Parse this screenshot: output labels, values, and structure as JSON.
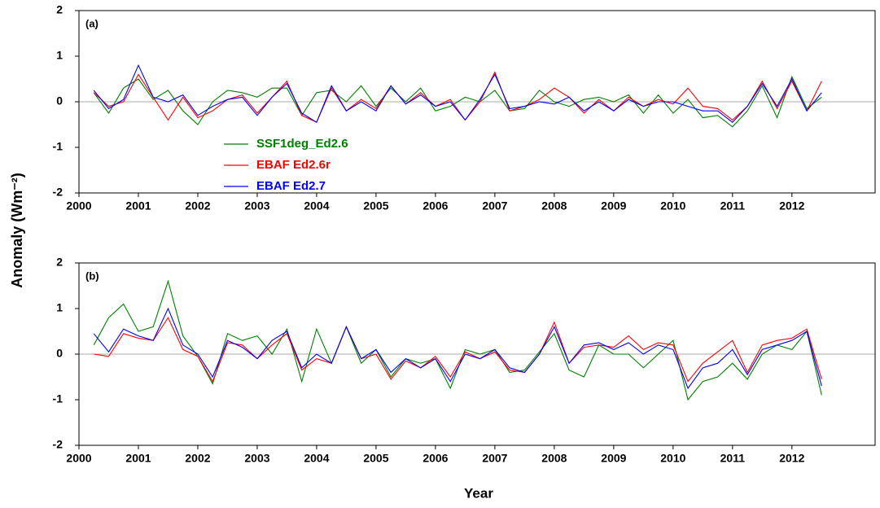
{
  "labels": {
    "y": "Anomaly (Wm⁻²)",
    "x": "Year"
  },
  "chart_data": [
    {
      "type": "line",
      "annotation": "(a)",
      "legend": "lower left",
      "zero_line": true,
      "xlim": [
        2000,
        2013.4
      ],
      "xticks": [
        2000,
        2001,
        2002,
        2003,
        2004,
        2005,
        2006,
        2007,
        2008,
        2009,
        2010,
        2011,
        2012
      ],
      "ylim": [
        -2,
        2
      ],
      "yticks": [
        -2,
        -1,
        0,
        1,
        2
      ],
      "x": [
        2000.25,
        2000.5,
        2000.75,
        2001.0,
        2001.25,
        2001.5,
        2001.75,
        2002.0,
        2002.25,
        2002.5,
        2002.75,
        2003.0,
        2003.25,
        2003.5,
        2003.75,
        2004.0,
        2004.25,
        2004.5,
        2004.75,
        2005.0,
        2005.25,
        2005.5,
        2005.75,
        2006.0,
        2006.25,
        2006.5,
        2006.75,
        2007.0,
        2007.25,
        2007.5,
        2007.75,
        2008.0,
        2008.25,
        2008.5,
        2008.75,
        2009.0,
        2009.25,
        2009.5,
        2009.75,
        2010.0,
        2010.25,
        2010.5,
        2010.75,
        2011.0,
        2011.25,
        2011.5,
        2011.75,
        2012.0,
        2012.25,
        2012.5
      ],
      "series": [
        {
          "name": "SSF1deg_Ed2.6",
          "color": "#008000",
          "values": [
            0.2,
            -0.25,
            0.3,
            0.5,
            0.05,
            0.25,
            -0.2,
            -0.5,
            0.0,
            0.25,
            0.2,
            0.1,
            0.3,
            0.3,
            -0.3,
            0.2,
            0.25,
            0.0,
            0.35,
            -0.1,
            0.3,
            0.0,
            0.3,
            -0.2,
            -0.1,
            0.1,
            0.0,
            0.25,
            -0.2,
            -0.15,
            0.25,
            0.0,
            -0.1,
            0.05,
            0.1,
            0.0,
            0.15,
            -0.25,
            0.15,
            -0.25,
            0.05,
            -0.35,
            -0.3,
            -0.55,
            -0.2,
            0.35,
            -0.35,
            0.55,
            -0.15,
            0.1
          ]
        },
        {
          "name": "EBAF Ed2.6r",
          "color": "#ff0000",
          "values": [
            0.2,
            -0.1,
            0.0,
            0.6,
            0.1,
            -0.4,
            0.1,
            -0.35,
            -0.2,
            0.05,
            0.15,
            -0.25,
            0.1,
            0.45,
            -0.3,
            -0.45,
            0.3,
            -0.2,
            0.05,
            -0.15,
            0.35,
            -0.05,
            0.2,
            -0.1,
            0.05,
            -0.4,
            0.0,
            0.65,
            -0.2,
            -0.1,
            0.05,
            0.3,
            0.1,
            -0.25,
            0.05,
            -0.2,
            0.1,
            -0.1,
            0.05,
            -0.05,
            0.3,
            -0.1,
            -0.15,
            -0.4,
            -0.1,
            0.45,
            -0.15,
            0.45,
            -0.2,
            0.45
          ]
        },
        {
          "name": "EBAF Ed2.7",
          "color": "#0000ff",
          "values": [
            0.25,
            -0.15,
            0.05,
            0.8,
            0.1,
            0.0,
            0.15,
            -0.3,
            -0.1,
            0.05,
            0.1,
            -0.3,
            0.1,
            0.4,
            -0.25,
            -0.45,
            0.35,
            -0.2,
            0.0,
            -0.2,
            0.35,
            -0.05,
            0.15,
            -0.1,
            0.0,
            -0.4,
            0.05,
            0.6,
            -0.15,
            -0.1,
            0.0,
            -0.05,
            0.1,
            -0.2,
            0.0,
            -0.2,
            0.05,
            -0.1,
            0.0,
            0.0,
            -0.1,
            -0.2,
            -0.2,
            -0.45,
            -0.1,
            0.4,
            -0.1,
            0.5,
            -0.2,
            0.2
          ]
        }
      ]
    },
    {
      "type": "line",
      "annotation": "(b)",
      "legend": null,
      "zero_line": true,
      "xlim": [
        2000,
        2013.4
      ],
      "xticks": [
        2000,
        2001,
        2002,
        2003,
        2004,
        2005,
        2006,
        2007,
        2008,
        2009,
        2010,
        2011,
        2012
      ],
      "ylim": [
        -2,
        2
      ],
      "yticks": [
        -2,
        -1,
        0,
        1,
        2
      ],
      "x": [
        2000.25,
        2000.5,
        2000.75,
        2001.0,
        2001.25,
        2001.5,
        2001.75,
        2002.0,
        2002.25,
        2002.5,
        2002.75,
        2003.0,
        2003.25,
        2003.5,
        2003.75,
        2004.0,
        2004.25,
        2004.5,
        2004.75,
        2005.0,
        2005.25,
        2005.5,
        2005.75,
        2006.0,
        2006.25,
        2006.5,
        2006.75,
        2007.0,
        2007.25,
        2007.5,
        2007.75,
        2008.0,
        2008.25,
        2008.5,
        2008.75,
        2009.0,
        2009.25,
        2009.5,
        2009.75,
        2010.0,
        2010.25,
        2010.5,
        2010.75,
        2011.0,
        2011.25,
        2011.5,
        2011.75,
        2012.0,
        2012.25,
        2012.5
      ],
      "series": [
        {
          "name": "SSF1deg_Ed2.6",
          "color": "#008000",
          "values": [
            0.2,
            0.8,
            1.1,
            0.5,
            0.6,
            1.6,
            0.4,
            -0.05,
            -0.65,
            0.45,
            0.3,
            0.4,
            0.0,
            0.55,
            -0.6,
            0.55,
            -0.2,
            0.6,
            -0.2,
            0.1,
            -0.5,
            -0.1,
            -0.2,
            -0.1,
            -0.75,
            0.1,
            0.0,
            0.1,
            -0.4,
            -0.35,
            0.05,
            0.45,
            -0.35,
            -0.5,
            0.2,
            0.0,
            0.0,
            -0.3,
            0.0,
            0.3,
            -1.0,
            -0.6,
            -0.5,
            -0.2,
            -0.55,
            0.0,
            0.2,
            0.1,
            0.5,
            -0.9
          ]
        },
        {
          "name": "EBAF Ed2.6r",
          "color": "#ff0000",
          "values": [
            0.0,
            -0.05,
            0.45,
            0.35,
            0.3,
            0.8,
            0.1,
            -0.05,
            -0.6,
            0.25,
            0.2,
            -0.1,
            0.2,
            0.45,
            -0.35,
            -0.1,
            -0.2,
            0.6,
            -0.1,
            0.0,
            -0.55,
            -0.15,
            -0.3,
            -0.05,
            -0.5,
            0.05,
            -0.1,
            0.05,
            -0.35,
            -0.4,
            0.0,
            0.7,
            -0.2,
            0.15,
            0.2,
            0.15,
            0.4,
            0.1,
            0.25,
            0.2,
            -0.6,
            -0.2,
            0.05,
            0.3,
            -0.4,
            0.2,
            0.3,
            0.35,
            0.55,
            -0.55
          ]
        },
        {
          "name": "EBAF Ed2.7",
          "color": "#0000ff",
          "values": [
            0.45,
            0.05,
            0.55,
            0.4,
            0.3,
            1.0,
            0.2,
            0.0,
            -0.5,
            0.3,
            0.15,
            -0.1,
            0.3,
            0.5,
            -0.3,
            0.0,
            -0.2,
            0.6,
            -0.1,
            0.1,
            -0.4,
            -0.1,
            -0.3,
            -0.1,
            -0.6,
            0.0,
            -0.1,
            0.1,
            -0.3,
            -0.4,
            0.0,
            0.6,
            -0.2,
            0.2,
            0.25,
            0.1,
            0.25,
            0.0,
            0.2,
            0.1,
            -0.75,
            -0.3,
            -0.2,
            0.1,
            -0.45,
            0.1,
            0.2,
            0.3,
            0.5,
            -0.7
          ]
        }
      ]
    }
  ]
}
